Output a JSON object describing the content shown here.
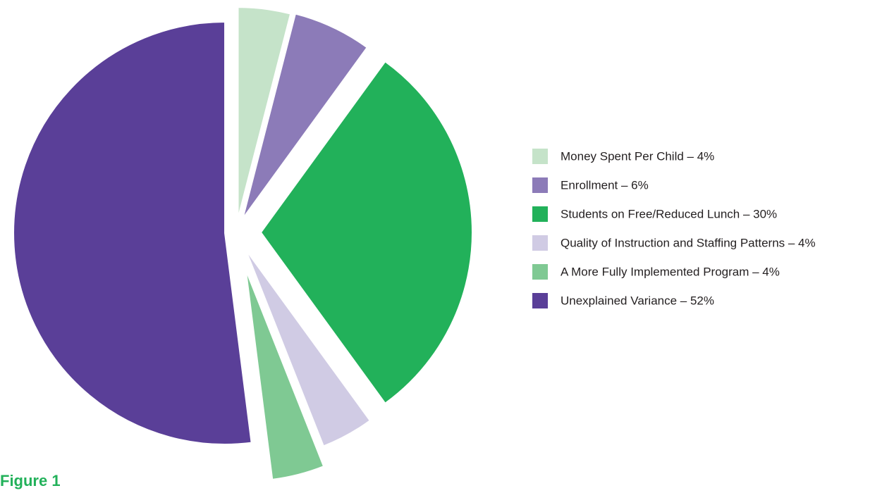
{
  "chart_data": {
    "type": "pie",
    "title": "Figure 1",
    "categories": [
      "Money Spent Per Child – 4%",
      "Enrollment – 6%",
      "Students on Free/Reduced Lunch – 30%",
      "Quality of Instruction and Staffing Patterns – 4%",
      "A More Fully Implemented Program – 4%",
      "Unexplained Variance – 52%"
    ],
    "values": [
      4,
      6,
      30,
      4,
      4,
      52
    ],
    "colors": [
      "#c5e3c9",
      "#8c7bb8",
      "#22b15a",
      "#d0cbe4",
      "#7fc993",
      "#5a3f98"
    ]
  }
}
